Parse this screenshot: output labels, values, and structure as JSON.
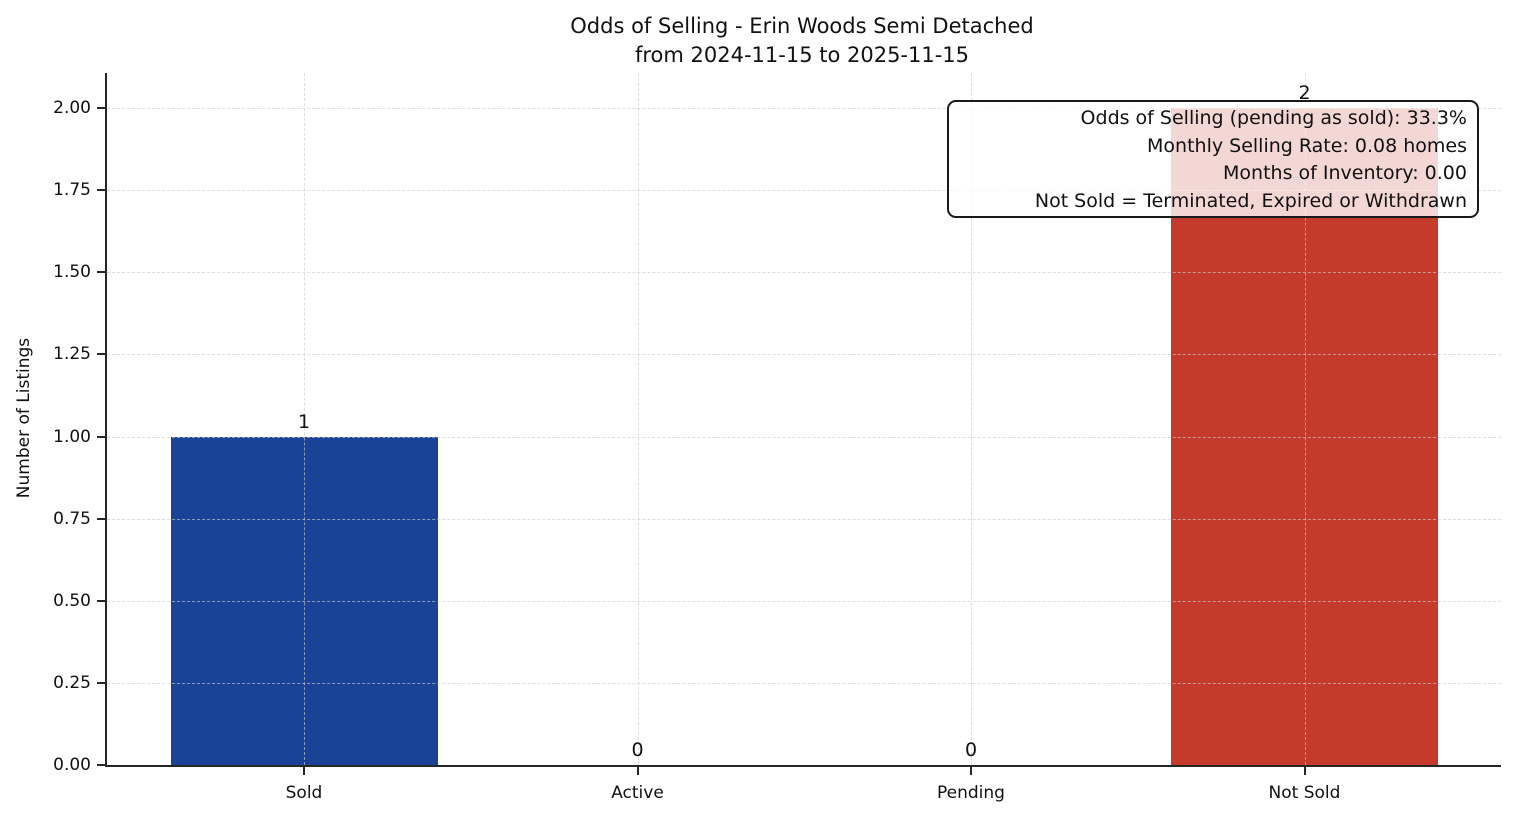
{
  "chart_data": {
    "type": "bar",
    "title": "Odds of Selling - Erin Woods Semi Detached",
    "subtitle": "from 2024-11-15 to 2025-11-15",
    "ylabel": "Number of Listings",
    "categories": [
      "Sold",
      "Active",
      "Pending",
      "Not Sold"
    ],
    "values": [
      1,
      0,
      0,
      2
    ],
    "value_labels": [
      "1",
      "0",
      "0",
      "2"
    ],
    "bar_colors": [
      "#1a4296",
      "#1a4296",
      "#1a4296",
      "#c43b2c"
    ],
    "ylim": [
      0.0,
      2.0
    ],
    "ytick_step": 0.25,
    "ytick_labels": [
      "0.00",
      "0.25",
      "0.50",
      "0.75",
      "1.00",
      "1.25",
      "1.50",
      "1.75",
      "2.00"
    ],
    "grid": {
      "style": "dashed",
      "color": "#cbcbcb",
      "vertical_at": "category-centers",
      "horizontal_at": "yticks"
    },
    "legend": "none",
    "annotation": {
      "lines": [
        "Odds of Selling (pending as sold): 33.3%",
        "Monthly Selling Rate: 0.08 homes",
        "Months of Inventory: 0.00",
        "Not Sold = Terminated, Expired or Withdrawn"
      ]
    }
  },
  "colors": {
    "sold_bar": "#1a4296",
    "not_sold_bar": "#c43b2c",
    "text": "#111111",
    "axis": "#262626",
    "grid": "#cbcbcb",
    "annotation_bg": "rgba(255,255,255,0.8)"
  }
}
